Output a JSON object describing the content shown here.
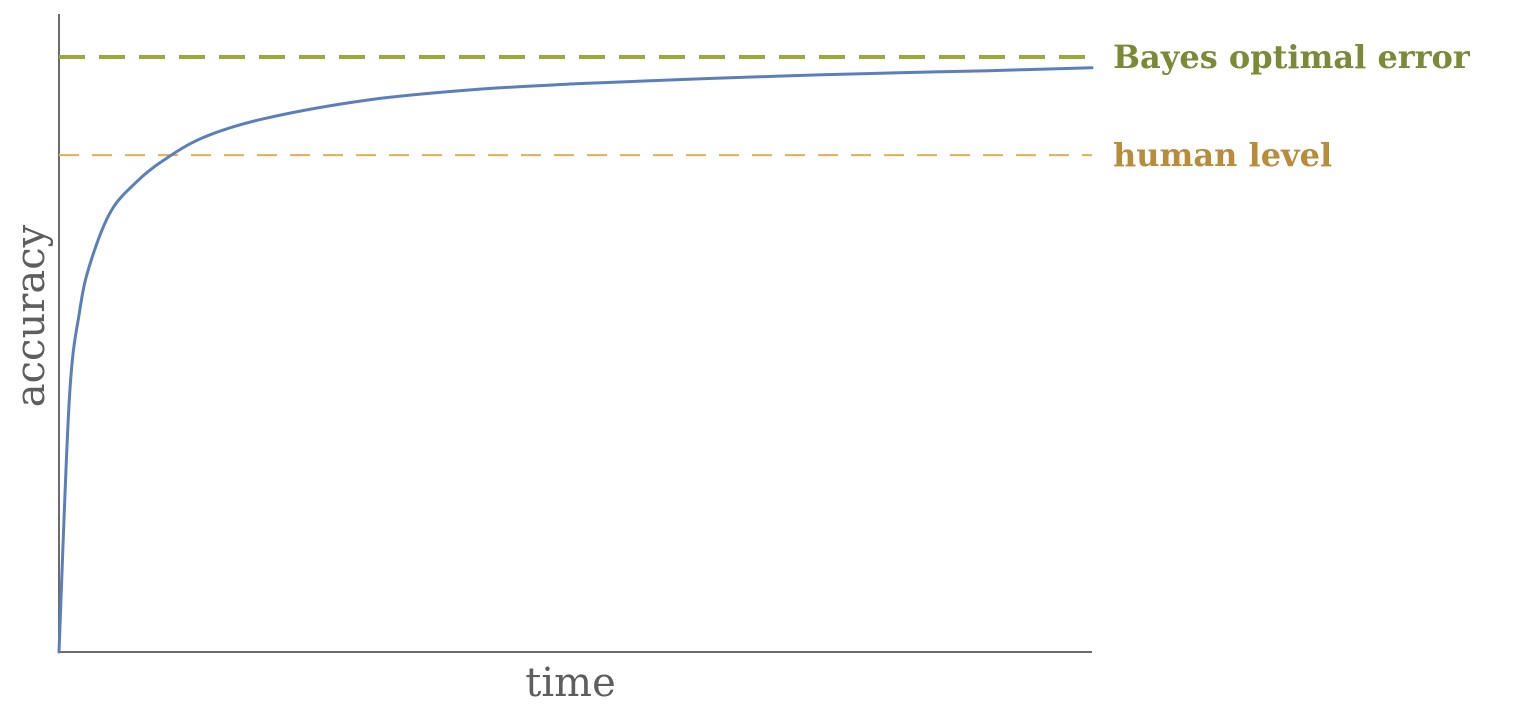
{
  "chart_data": {
    "type": "line",
    "title": "",
    "xlabel": "time",
    "ylabel": "accuracy",
    "xlim": [
      0,
      1
    ],
    "ylim": [
      0,
      1
    ],
    "grid": false,
    "axes": [
      "left",
      "bottom"
    ],
    "series": [
      {
        "color": "#5b7fbc",
        "x": [
          0,
          0.01,
          0.02,
          0.03,
          0.05,
          0.075,
          0.1,
          0.14,
          0.2,
          0.3,
          0.4,
          0.5,
          0.6,
          0.7,
          0.8,
          0.9,
          1.0
        ],
        "y": [
          0,
          0.425,
          0.573,
          0.652,
          0.74,
          0.79,
          0.825,
          0.865,
          0.897,
          0.928,
          0.945,
          0.955,
          0.962,
          0.968,
          0.973,
          0.977,
          0.982
        ]
      }
    ],
    "reference_lines": [
      {
        "label": "Bayes optimal error",
        "y": 1.0,
        "line_color": "#9aa83c",
        "text_color": "#7a8a36",
        "style": "dashed"
      },
      {
        "label": "human level",
        "y": 0.835,
        "line_color": "#e6ae52",
        "text_color": "#b98c3c",
        "style": "dashed"
      }
    ]
  }
}
